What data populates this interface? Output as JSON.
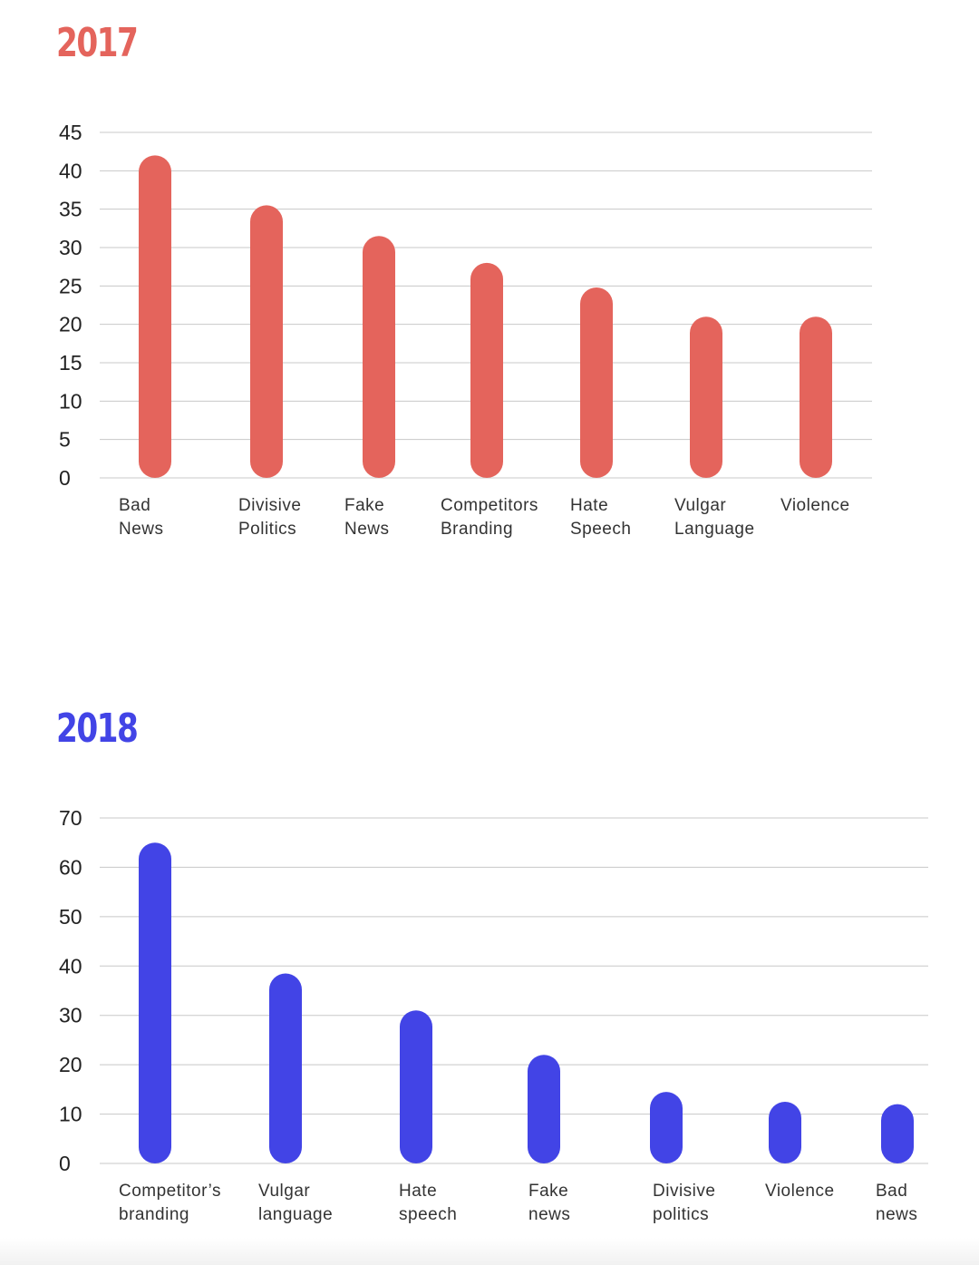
{
  "chart_data": [
    {
      "type": "bar",
      "title": "2017",
      "color": "#E4645C",
      "categories": [
        [
          "Bad",
          "News"
        ],
        [
          "Divisive",
          "Politics"
        ],
        [
          "Fake",
          "News"
        ],
        [
          "Competitors",
          "Branding"
        ],
        [
          "Hate",
          "Speech"
        ],
        [
          "Vulgar",
          "Language"
        ],
        [
          "Violence"
        ]
      ],
      "values": [
        42,
        35.5,
        31.5,
        28,
        24.8,
        21,
        21
      ],
      "yticks": [
        0,
        5,
        10,
        15,
        20,
        25,
        30,
        35,
        40,
        45
      ],
      "ylim": [
        0,
        45
      ],
      "grid": true
    },
    {
      "type": "bar",
      "title": "2018",
      "color": "#4244E6",
      "categories": [
        [
          "Competitor’s",
          "branding"
        ],
        [
          "Vulgar",
          "language"
        ],
        [
          "Hate",
          "speech"
        ],
        [
          "Fake",
          "news"
        ],
        [
          "Divisive",
          "politics"
        ],
        [
          "Violence"
        ],
        [
          "Bad",
          "news"
        ]
      ],
      "values": [
        65,
        38.5,
        31,
        22,
        14.5,
        12.5,
        12
      ],
      "yticks": [
        0,
        10,
        20,
        30,
        40,
        50,
        60,
        70
      ],
      "ylim": [
        0,
        70
      ],
      "grid": true
    }
  ]
}
